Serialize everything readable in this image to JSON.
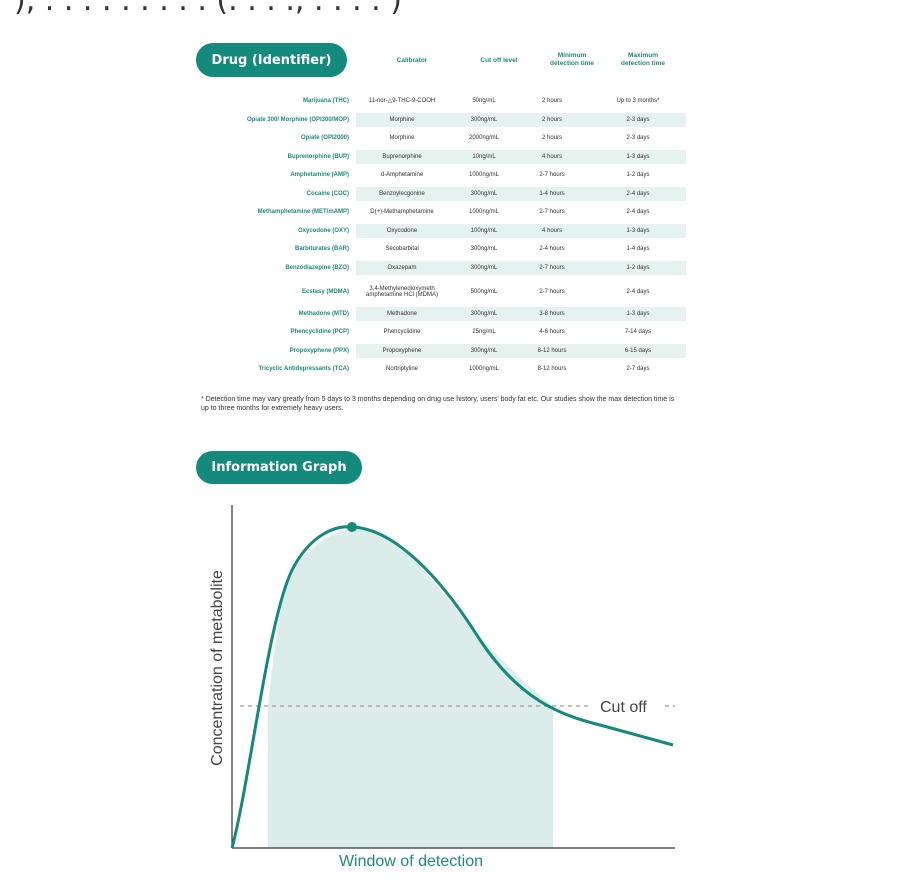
{
  "top_text": "), . . . . . . . . . (. . . ., . . . . )",
  "table": {
    "header_pill": "Drug (Identifier)",
    "columns": [
      "Calibrator",
      "Cut off level",
      "Minimum\ndetection time",
      "Maximum\ndetection time"
    ],
    "rows": [
      {
        "drug": "Marijuana (THC)",
        "calibrator": "11-nor-△9-THC-9-COOH",
        "cutoff": "50ng/mL",
        "min": "2 hours",
        "max": "Up to 3 months*"
      },
      {
        "drug": "Opiate 300/ Morphine (OPI300/MOP)",
        "calibrator": "Morphine",
        "cutoff": "300ng/mL",
        "min": "2 hours",
        "max": "2-3 days"
      },
      {
        "drug": "Opiate (OPI2000)",
        "calibrator": "Morphine",
        "cutoff": "2000ng/mL",
        "min": "2 hours",
        "max": "2-3 days"
      },
      {
        "drug": "Buprenorphine (BUP)",
        "calibrator": "Buprenorphine",
        "cutoff": "10ng/mL",
        "min": "4 hours",
        "max": "1-3 days"
      },
      {
        "drug": "Amphetamine (AMP)",
        "calibrator": "d-Amphetamine",
        "cutoff": "1000ng/mL",
        "min": "2-7 hours",
        "max": "1-2 days"
      },
      {
        "drug": "Cocaine (COC)",
        "calibrator": "Benzoylecgonine",
        "cutoff": "300ng/mL",
        "min": "1-4 hours",
        "max": "2-4 days"
      },
      {
        "drug": "Methamphetamine (MET/mAMP)",
        "calibrator": "D(+)-Methamphetamine",
        "cutoff": "1000ng/mL",
        "min": "2-7 hours",
        "max": "2-4 days"
      },
      {
        "drug": "Oxycodone (OXY)",
        "calibrator": "Oxycodone",
        "cutoff": "100ng/mL",
        "min": "4 hours",
        "max": "1-3 days"
      },
      {
        "drug": "Barbiturates (BAR)",
        "calibrator": "Secobarbital",
        "cutoff": "300ng/mL",
        "min": "2-4 hours",
        "max": "1-4 days"
      },
      {
        "drug": "Benzodiazepine (BZO)",
        "calibrator": "Oxazepam",
        "cutoff": "300ng/mL",
        "min": "2-7 hours",
        "max": "1-2 days"
      },
      {
        "drug": "Ecstasy (MDMA)",
        "calibrator": "3,4-Methylenedioxymeth amphetamine HCl (MDMA)",
        "cutoff": "500ng/mL",
        "min": "2-7 hours",
        "max": "2-4 days"
      },
      {
        "drug": "Methadone (MTD)",
        "calibrator": "Methadone",
        "cutoff": "300ng/mL",
        "min": "3-8 hours",
        "max": "1-3 days"
      },
      {
        "drug": "Phencyclidine (PCP)",
        "calibrator": "Phencyclidine",
        "cutoff": "25ng/mL",
        "min": "4-6 hours",
        "max": "7-14 days"
      },
      {
        "drug": "Propoxyphene (PPX)",
        "calibrator": "Propoxyphene",
        "cutoff": "300ng/mL",
        "min": "8-12 hours",
        "max": "6-15 days"
      },
      {
        "drug": "Tricyclic Antidepressants (TCA)",
        "calibrator": "Nortriptyline",
        "cutoff": "1000ng/mL",
        "min": "8-12 hours",
        "max": "2-7 days"
      }
    ],
    "footnote": "* Detection time may vary greatly from 5 days to 3 months depending on drug use history, users' body fat etc. Our studies show the max detection time is up to three months for extremely heavy users."
  },
  "graph": {
    "header_pill": "Information Graph",
    "ylabel": "Concentration of metabolite",
    "xlabel": "Window of detection",
    "cutoff_label": "Cut off",
    "colors": {
      "accent": "#138a7b",
      "fill": "#dcecea",
      "dashed": "#9a9a9a"
    }
  }
}
